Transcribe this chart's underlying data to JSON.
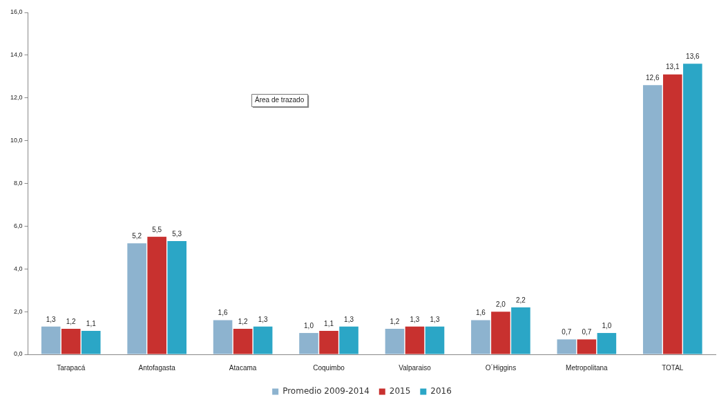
{
  "chart_data": {
    "type": "bar",
    "categories": [
      "Tarapacá",
      "Antofagasta",
      "Atacama",
      "Coquimbo",
      "Valparaiso",
      "O´Higgins",
      "Metropolitana",
      "TOTAL"
    ],
    "series": [
      {
        "name": "Promedio 2009-2014",
        "color": "#8db3cf",
        "values": [
          1.3,
          5.2,
          1.6,
          1.0,
          1.2,
          1.6,
          0.7,
          12.6
        ],
        "value_labels": [
          "1,3",
          "5,2",
          "1,6",
          "1,0",
          "1,2",
          "1,6",
          "0,7",
          "12,6"
        ]
      },
      {
        "name": "2015",
        "color": "#c8312f",
        "values": [
          1.2,
          5.5,
          1.2,
          1.1,
          1.3,
          2.0,
          0.7,
          13.1
        ],
        "value_labels": [
          "1,2",
          "5,5",
          "1,2",
          "1,1",
          "1,3",
          "2,0",
          "0,7",
          "13,1"
        ]
      },
      {
        "name": "2016",
        "color": "#2ba6c6",
        "values": [
          1.1,
          5.3,
          1.3,
          1.3,
          1.3,
          2.2,
          1.0,
          13.6
        ],
        "value_labels": [
          "1,1",
          "5,3",
          "1,3",
          "1,3",
          "1,3",
          "2,2",
          "1,0",
          "13,6"
        ]
      }
    ],
    "ylim": [
      0,
      16
    ],
    "yticks": [
      {
        "value": 0,
        "label": "0,0"
      },
      {
        "value": 2,
        "label": "2,0"
      },
      {
        "value": 4,
        "label": "4,0"
      },
      {
        "value": 6,
        "label": "6,0"
      },
      {
        "value": 8,
        "label": "8,0"
      },
      {
        "value": 10,
        "label": "10,0"
      },
      {
        "value": 12,
        "label": "12,0"
      },
      {
        "value": 14,
        "label": "14,0"
      },
      {
        "value": 16,
        "label": "16,0"
      }
    ],
    "grid": false,
    "legend": "bottom",
    "annotations": [
      "Área de trazado"
    ]
  }
}
